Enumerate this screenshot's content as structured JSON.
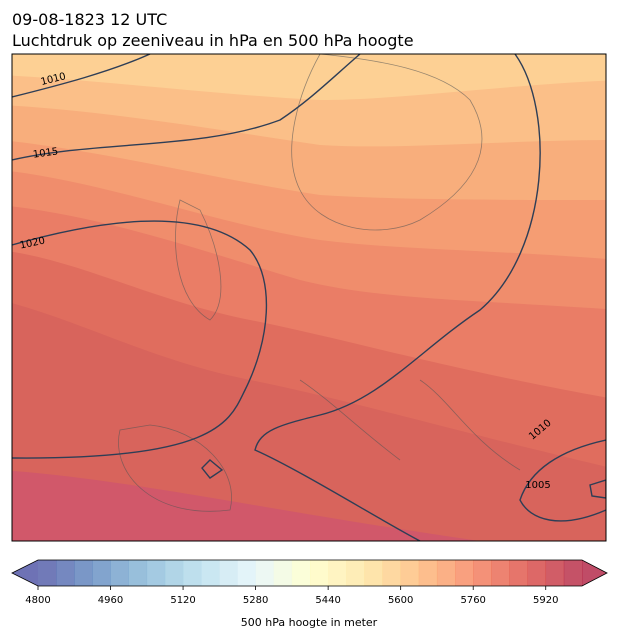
{
  "header": {
    "title": "09-08-1823 12 UTC",
    "subtitle": "Luchtdruk op zeeniveau in hPa en 500 hPa hoogte"
  },
  "map": {
    "isobar_labels": [
      1010,
      1015,
      1020,
      1010,
      1005
    ],
    "isobar_color": "#2e3e56"
  },
  "colorbar": {
    "range": [
      4800,
      6000
    ],
    "level_step": 40,
    "ticks": [
      4800,
      4960,
      5120,
      5280,
      5440,
      5600,
      5760,
      5920
    ],
    "label": "500 hPa hoogte in meter",
    "colormap": [
      "#313695",
      "#4575b4",
      "#74add1",
      "#abd9e9",
      "#e0f3f8",
      "#ffffbf",
      "#fee090",
      "#fdae61",
      "#f46d43",
      "#d73027",
      "#a50026"
    ],
    "opacity": 0.7
  }
}
